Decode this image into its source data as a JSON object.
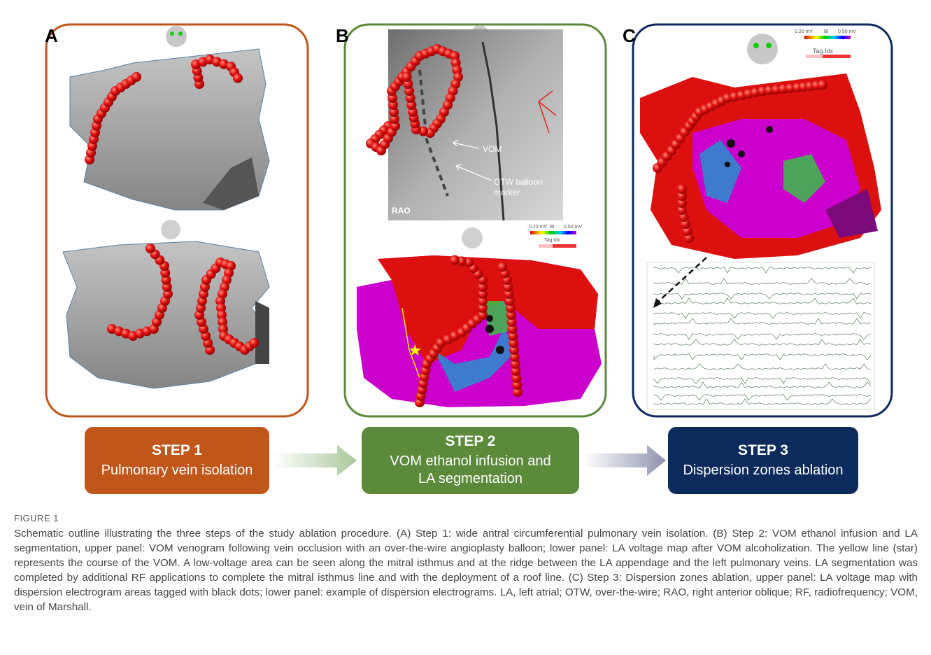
{
  "panels": [
    {
      "label": "A"
    },
    {
      "label": "B",
      "annotations": [
        "VOM",
        "OTW balloon marker",
        "RAO"
      ],
      "colorbar": {
        "min": "0.20 mV",
        "mode": "Bi",
        "max": "0.50 mV",
        "tag": "Tag.Idx"
      }
    },
    {
      "label": "C",
      "colorbar": {
        "min": "0.20 mV",
        "mode": "Bi",
        "max": "0.50 mV",
        "tag": "Tag.Idx"
      }
    }
  ],
  "steps": [
    {
      "title": "STEP 1",
      "text": "Pulmonary vein isolation"
    },
    {
      "title": "STEP 2",
      "text": "VOM ethanol infusion and LA segmentation"
    },
    {
      "title": "STEP 3",
      "text": "Dispersion zones ablation"
    }
  ],
  "figure_label": "FIGURE 1",
  "caption": "Schematic outline illustrating the three steps of the study ablation procedure. (A) Step 1: wide antral circumferential pulmonary vein isolation. (B) Step 2: VOM ethanol infusion and LA segmentation, upper panel: VOM venogram following vein occlusion with an over-the-wire angioplasty balloon; lower panel: LA voltage map after VOM alcoholization. The yellow line (star) represents the course of the VOM. A low-voltage area can be seen along the mitral isthmus and at the ridge between the LA appendage and the left pulmonary veins. LA segmentation was completed by additional RF applications to complete the mitral isthmus line and with the deployment of a roof line. (C) Step 3: Dispersion zones ablation, upper panel: LA voltage map with dispersion electrogram areas tagged with black dots; lower panel: example of dispersion electrograms. LA, left atrial; OTW, over-the-wire; RAO, right anterior oblique; RF, radiofrequency; VOM, vein of Marshall."
}
